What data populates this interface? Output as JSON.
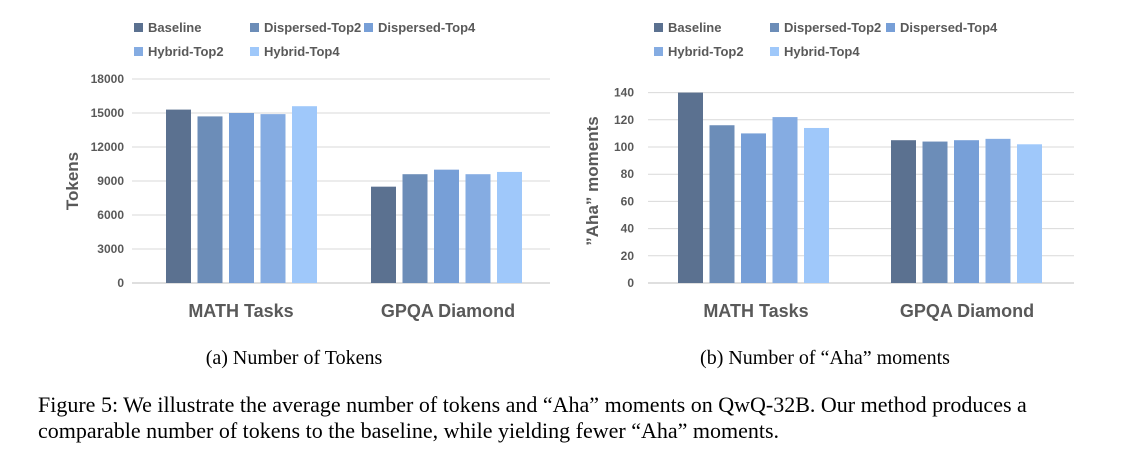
{
  "chart_data": [
    {
      "type": "bar",
      "subcaption": "(a) Number of Tokens",
      "ylabel": "Tokens",
      "categories": [
        "MATH Tasks",
        "GPQA Diamond"
      ],
      "yticks": [
        "0",
        "3000",
        "6000",
        "9000",
        "12000",
        "15000",
        "18000"
      ],
      "ylim": [
        0,
        18000
      ],
      "grid": true,
      "legend_position": "top",
      "series": [
        {
          "name": "Baseline",
          "color": "#5b7190",
          "values": [
            15300,
            8500
          ]
        },
        {
          "name": "Dispersed-Top2",
          "color": "#6c8db8",
          "values": [
            14700,
            9600
          ]
        },
        {
          "name": "Dispersed-Top4",
          "color": "#779fd7",
          "values": [
            15000,
            10000
          ]
        },
        {
          "name": "Hybrid-Top2",
          "color": "#85ace2",
          "values": [
            14900,
            9600
          ]
        },
        {
          "name": "Hybrid-Top4",
          "color": "#9fc8fa",
          "values": [
            15600,
            9800
          ]
        }
      ]
    },
    {
      "type": "bar",
      "subcaption": "(b) Number of “Aha” moments",
      "ylabel": "”Aha” moments",
      "categories": [
        "MATH Tasks",
        "GPQA Diamond"
      ],
      "yticks": [
        "0",
        "20",
        "40",
        "60",
        "80",
        "100",
        "120",
        "140"
      ],
      "ylim": [
        0,
        150
      ],
      "grid": true,
      "legend_position": "top",
      "series": [
        {
          "name": "Baseline",
          "color": "#5b7190",
          "values": [
            140,
            105
          ]
        },
        {
          "name": "Dispersed-Top2",
          "color": "#6c8db8",
          "values": [
            116,
            104
          ]
        },
        {
          "name": "Dispersed-Top4",
          "color": "#779fd7",
          "values": [
            110,
            105
          ]
        },
        {
          "name": "Hybrid-Top2",
          "color": "#85ace2",
          "values": [
            122,
            106
          ]
        },
        {
          "name": "Hybrid-Top4",
          "color": "#9fc8fa",
          "values": [
            114,
            102
          ]
        }
      ]
    }
  ],
  "figure_caption": "Figure 5: We illustrate the average number of tokens and “Aha” moments on QwQ-32B. Our method produces a comparable number of tokens to the baseline, while yielding fewer “Aha” moments."
}
